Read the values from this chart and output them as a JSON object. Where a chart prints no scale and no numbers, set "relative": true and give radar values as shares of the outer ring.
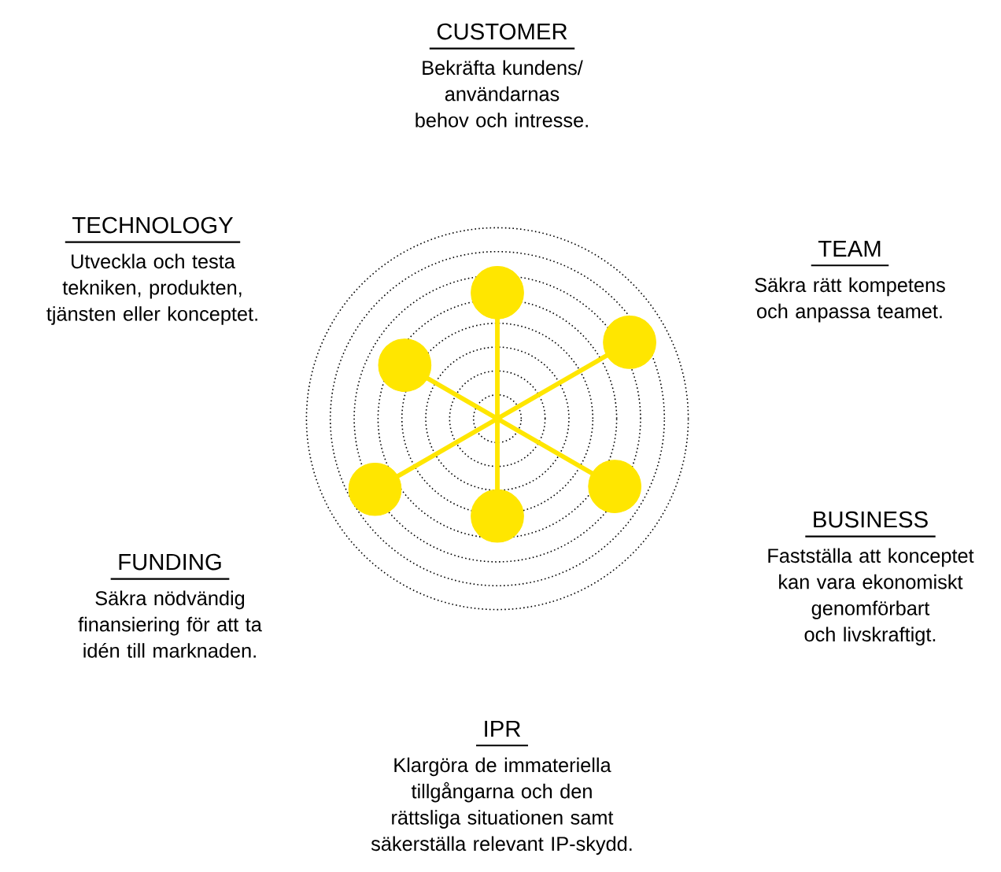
{
  "chart_data": {
    "type": "radar",
    "relative": true,
    "grid": true,
    "marker": "circle",
    "categories": [
      "CUSTOMER",
      "TEAM",
      "BUSINESS",
      "IPR",
      "FUNDING",
      "TECHNOLOGY"
    ],
    "series": [
      {
        "color": "#ffe600",
        "values": [
          0.66,
          0.8,
          0.71,
          0.51,
          0.74,
          0.56
        ]
      }
    ],
    "annotations": [
      "Bekräfta kundens/ användarnas behov och intresse.",
      "Säkra rätt kompetens och anpassa teamet.",
      "Fastställa att konceptet kan vara ekonomiskt genomförbart och livskraftigt.",
      "Klargöra de immateriella tillgångarna och den rättsliga situationen samt säkerställa relevant IP-skydd.",
      "Säkra nödvändig finansiering för att ta idén till marknaden.",
      "Utveckla och testa tekniken, produkten, tjänsten eller konceptet."
    ]
  }
}
